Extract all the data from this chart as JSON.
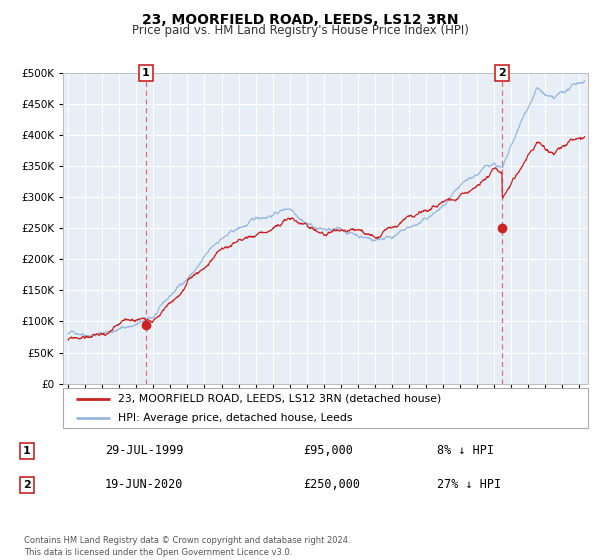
{
  "title": "23, MOORFIELD ROAD, LEEDS, LS12 3RN",
  "subtitle": "Price paid vs. HM Land Registry's House Price Index (HPI)",
  "legend_label_red": "23, MOORFIELD ROAD, LEEDS, LS12 3RN (detached house)",
  "legend_label_blue": "HPI: Average price, detached house, Leeds",
  "annotation1_label": "1",
  "annotation1_date": "29-JUL-1999",
  "annotation1_price": "£95,000",
  "annotation1_hpi": "8% ↓ HPI",
  "annotation2_label": "2",
  "annotation2_date": "19-JUN-2020",
  "annotation2_price": "£250,000",
  "annotation2_hpi": "27% ↓ HPI",
  "footnote": "Contains HM Land Registry data © Crown copyright and database right 2024.\nThis data is licensed under the Open Government Licence v3.0.",
  "ylim": [
    0,
    500000
  ],
  "yticks": [
    0,
    50000,
    100000,
    150000,
    200000,
    250000,
    300000,
    350000,
    400000,
    450000,
    500000
  ],
  "hpi_color": "#97b9df",
  "price_color": "#cc2222",
  "marker_color": "#cc2222",
  "vline_color": "#e07070",
  "background_plot": "#e8eef6",
  "grid_color": "#ffffff",
  "marker1_x": 1999.57,
  "marker1_y": 95000,
  "marker2_x": 2020.46,
  "marker2_y": 250000,
  "xmin": 1994.7,
  "xmax": 2025.5
}
